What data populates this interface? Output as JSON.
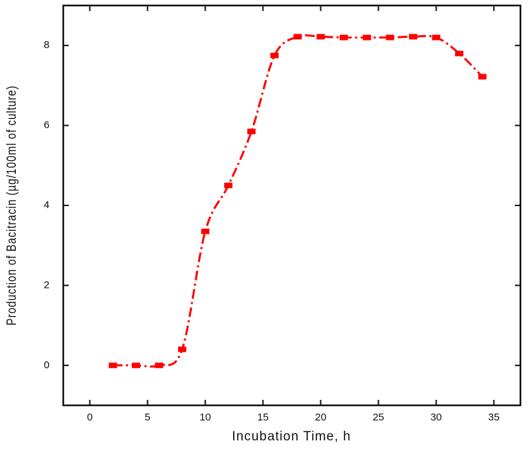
{
  "chart_data": {
    "type": "line",
    "x_label": "Incubation Time, h",
    "y_label": "Production of Bacitracin (µg/100ml of culture)",
    "x": [
      2,
      4,
      6,
      8,
      10,
      12,
      14,
      16,
      18,
      20,
      22,
      24,
      26,
      28,
      30,
      32,
      34
    ],
    "series": [
      {
        "color": "#ff0000",
        "values": [
          0,
          0,
          0,
          0.4,
          3.35,
          4.5,
          5.85,
          7.75,
          8.22,
          8.22,
          8.2,
          8.2,
          8.2,
          8.22,
          8.2,
          7.8,
          7.22
        ]
      }
    ],
    "xlim": [
      -2.3,
      37.3
    ],
    "ylim": [
      -1,
      9
    ],
    "xticks": [
      0,
      5,
      10,
      15,
      20,
      25,
      30,
      35
    ],
    "yticks": [
      0,
      2,
      4,
      6,
      8
    ],
    "line_style": "dash-dot",
    "smooth": true
  }
}
